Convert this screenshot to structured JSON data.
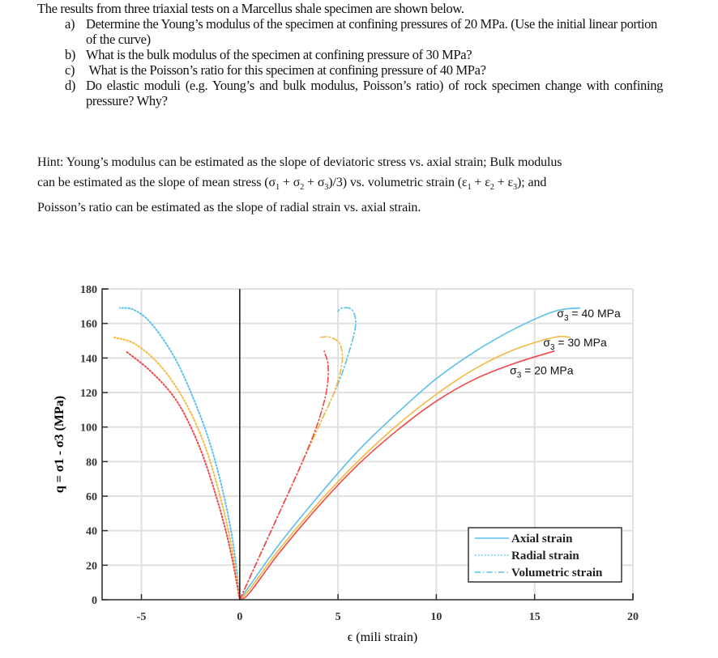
{
  "problem": {
    "intro": "The results from three triaxial tests on a Marcellus shale specimen are shown below.",
    "questions": [
      {
        "marker": "a)",
        "text": "Determine the Young’s modulus of the specimen at confining pressures of 20 MPa. (Use the initial linear portion of the curve)"
      },
      {
        "marker": "b)",
        "text": "What is the bulk modulus of the specimen at confining pressure of 30 MPa?"
      },
      {
        "marker": "c)",
        "text": " What is the Poisson’s ratio for this specimen at confining pressure of 40 MPa?"
      },
      {
        "marker": "d)",
        "text": "Do elastic moduli (e.g. Young’s and bulk modulus, Poisson’s ratio) of rock specimen change with confining pressure? Why?"
      }
    ],
    "hint": {
      "line1": "Hint: Young’s modulus can be estimated as the slope of deviatoric stress vs. axial strain; Bulk modulus",
      "line2_pre": "can be estimated as the slope of mean stress (σ",
      "line2_mid1": " + σ",
      "line2_mid2": " + σ",
      "line2_mid3": ")/3) vs. volumetric strain (ε",
      "line2_mid4": " + ε",
      "line2_mid5": " + ε",
      "line2_post": "); and",
      "sub1": "1",
      "sub2": "2",
      "sub3": "3",
      "line3": "Poisson’s ratio can be estimated as the slope of radial strain vs. axial strain."
    }
  },
  "chart_data": {
    "type": "line",
    "title": "",
    "xlabel": "ϵ (mili strain)",
    "ylabel": "q = σ1 - σ3 (MPa)",
    "xlim": [
      -7,
      20
    ],
    "ylim": [
      0,
      180
    ],
    "x_ticks": [
      -5,
      0,
      5,
      10,
      15,
      20
    ],
    "y_ticks": [
      0,
      20,
      40,
      60,
      80,
      100,
      120,
      140,
      160,
      180
    ],
    "grid": true,
    "legend_position": "lower right",
    "legend": [
      {
        "label": "Axial strain",
        "style": "solid"
      },
      {
        "label": "Radial strain",
        "style": "dotted"
      },
      {
        "label": "Volumetric strain",
        "style": "dash-dot"
      }
    ],
    "annotations": [
      {
        "text": "σ3 = 40 MPa",
        "x": 18.2,
        "y": 166
      },
      {
        "text": "σ3 = 30 MPa",
        "x": 17.5,
        "y": 149
      },
      {
        "text": "σ3 = 20 MPa",
        "x": 15.8,
        "y": 133
      }
    ],
    "colors": {
      "40MPa": "#5bc0eb",
      "30MPa": "#f4b942",
      "20MPa": "#f04848"
    },
    "series": [
      {
        "name": "σ3 = 40 MPa axial",
        "style": "solid",
        "color": "#5bc0eb",
        "x": [
          0,
          0.5,
          2,
          4,
          6,
          8,
          10,
          12,
          14,
          16,
          17.3
        ],
        "y": [
          0,
          8,
          32,
          60,
          86,
          108,
          128,
          144,
          157,
          167,
          169
        ]
      },
      {
        "name": "σ3 = 30 MPa axial",
        "style": "solid",
        "color": "#f4b942",
        "x": [
          0,
          0.5,
          2,
          4,
          6,
          8,
          10,
          12,
          14,
          16,
          16.8
        ],
        "y": [
          0,
          6,
          29,
          56,
          80,
          101,
          119,
          134,
          145,
          152,
          152
        ]
      },
      {
        "name": "σ3 = 20 MPa axial",
        "style": "solid",
        "color": "#f04848",
        "x": [
          0,
          0.5,
          2,
          4,
          6,
          8,
          10,
          12,
          14,
          16
        ],
        "y": [
          0,
          4,
          27,
          54,
          78,
          98,
          115,
          128,
          137,
          144
        ]
      },
      {
        "name": "σ3 = 40 MPa radial",
        "style": "dotted",
        "color": "#5bc0eb",
        "x": [
          0,
          -0.3,
          -0.8,
          -1.5,
          -2.3,
          -3.3,
          -4.5,
          -5.4,
          -6.1
        ],
        "y": [
          0,
          30,
          60,
          90,
          115,
          140,
          160,
          168,
          169
        ]
      },
      {
        "name": "σ3 = 30 MPa radial",
        "style": "dotted",
        "color": "#f4b942",
        "x": [
          0,
          -0.4,
          -1,
          -1.8,
          -2.8,
          -4,
          -5.3,
          -6.4
        ],
        "y": [
          0,
          30,
          60,
          90,
          115,
          135,
          148,
          152
        ]
      },
      {
        "name": "σ3 = 20 MPa radial",
        "style": "dotted",
        "color": "#f04848",
        "x": [
          0,
          -0.5,
          -1.2,
          -2.1,
          -3.2,
          -4.5,
          -5.8
        ],
        "y": [
          0,
          30,
          60,
          90,
          115,
          132,
          144
        ]
      },
      {
        "name": "σ3 = 40 MPa volumetric",
        "style": "dash-dot",
        "color": "#5bc0eb",
        "x": [
          0,
          1,
          2,
          3,
          4,
          5,
          5.6,
          5.9,
          5.7,
          5.2,
          5.0
        ],
        "y": [
          0,
          25,
          50,
          75,
          100,
          125,
          145,
          160,
          168,
          169,
          167
        ]
      },
      {
        "name": "σ3 = 30 MPa volumetric",
        "style": "dash-dot",
        "color": "#f4b942",
        "x": [
          0,
          1,
          2,
          3,
          4,
          4.8,
          5.2,
          5.1,
          4.6,
          4.1
        ],
        "y": [
          0,
          25,
          50,
          75,
          100,
          120,
          137,
          148,
          152,
          152
        ]
      },
      {
        "name": "σ3 = 20 MPa volumetric",
        "style": "dash-dot",
        "color": "#f04848",
        "x": [
          0,
          1,
          2,
          3,
          3.9,
          4.4,
          4.5,
          4.3
        ],
        "y": [
          0,
          25,
          50,
          75,
          100,
          120,
          135,
          144
        ]
      }
    ]
  }
}
